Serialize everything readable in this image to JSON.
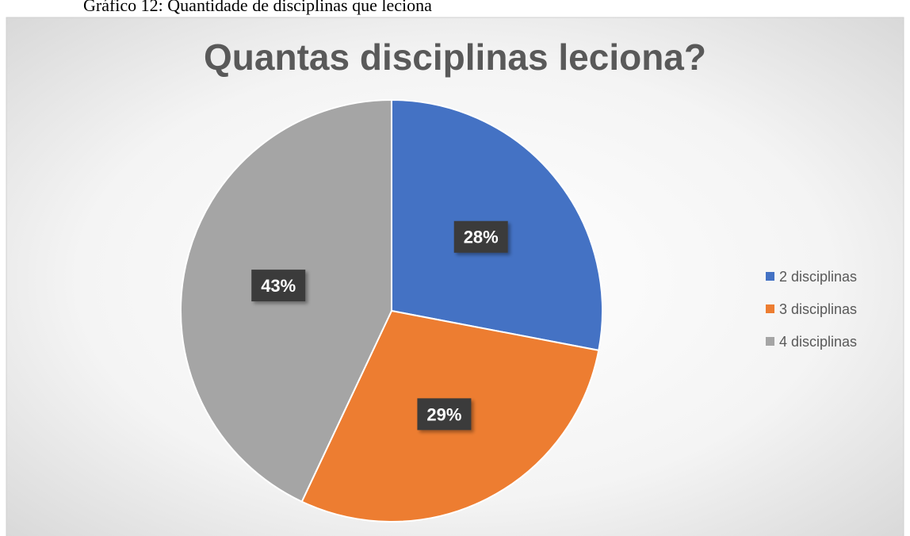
{
  "caption": "Gráfico 12: Quantidade de disciplinas que leciona",
  "chart_data": {
    "type": "pie",
    "title": "Quantas disciplinas leciona?",
    "categories": [
      "2 disciplinas",
      "3 disciplinas",
      "4 disciplinas"
    ],
    "values": [
      28,
      29,
      43
    ],
    "value_labels": [
      "28%",
      "29%",
      "43%"
    ],
    "colors": [
      "#4472c4",
      "#ed7d31",
      "#a5a5a5"
    ],
    "legend": "right"
  }
}
